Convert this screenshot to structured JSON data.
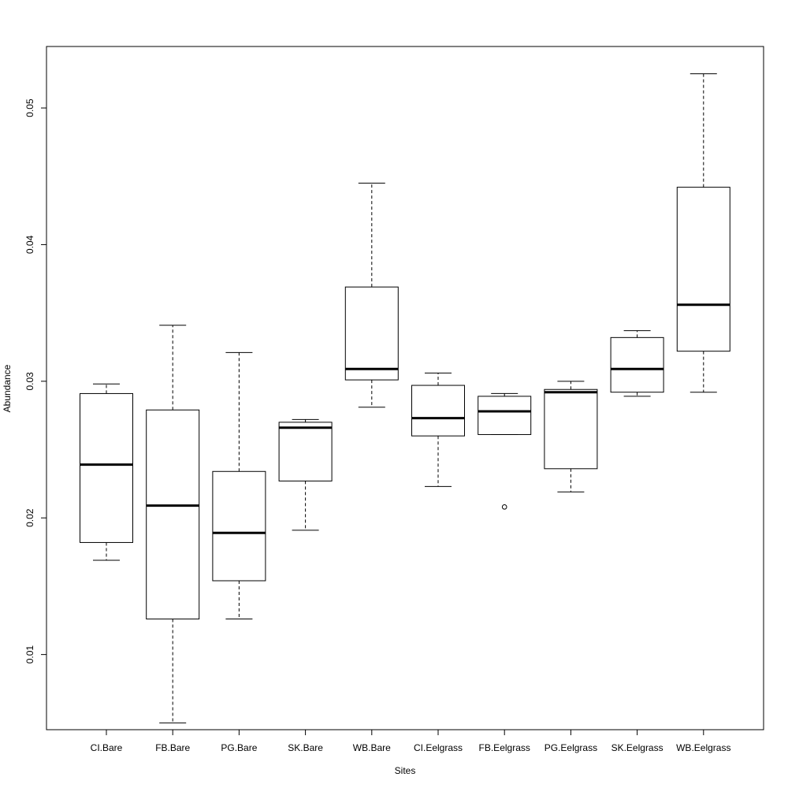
{
  "chart_data": {
    "type": "boxplot",
    "title": "",
    "xlabel": "Sites",
    "ylabel": "Abundance",
    "ylim": [
      0.0045,
      0.0545
    ],
    "yticks": [
      0.01,
      0.02,
      0.03,
      0.04,
      0.05
    ],
    "ytick_labels": [
      "0.01",
      "0.02",
      "0.03",
      "0.04",
      "0.05"
    ],
    "grid": false,
    "categories": [
      "CI.Bare",
      "FB.Bare",
      "PG.Bare",
      "SK.Bare",
      "WB.Bare",
      "CI.Eelgrass",
      "FB.Eelgrass",
      "PG.Eelgrass",
      "SK.Eelgrass",
      "WB.Eelgrass"
    ],
    "boxes": [
      {
        "whisker_low": 0.0169,
        "q1": 0.0182,
        "median": 0.0239,
        "q3": 0.0291,
        "whisker_high": 0.0298,
        "outliers": []
      },
      {
        "whisker_low": 0.005,
        "q1": 0.0126,
        "median": 0.0209,
        "q3": 0.0279,
        "whisker_high": 0.0341,
        "outliers": []
      },
      {
        "whisker_low": 0.0126,
        "q1": 0.0154,
        "median": 0.0189,
        "q3": 0.0234,
        "whisker_high": 0.0321,
        "outliers": []
      },
      {
        "whisker_low": 0.0191,
        "q1": 0.0227,
        "median": 0.0266,
        "q3": 0.027,
        "whisker_high": 0.0272,
        "outliers": []
      },
      {
        "whisker_low": 0.0281,
        "q1": 0.0301,
        "median": 0.0309,
        "q3": 0.0369,
        "whisker_high": 0.0445,
        "outliers": []
      },
      {
        "whisker_low": 0.0223,
        "q1": 0.026,
        "median": 0.0273,
        "q3": 0.0297,
        "whisker_high": 0.0306,
        "outliers": []
      },
      {
        "whisker_low": 0.0261,
        "q1": 0.0261,
        "median": 0.0278,
        "q3": 0.0289,
        "whisker_high": 0.0291,
        "outliers": [
          0.0208
        ]
      },
      {
        "whisker_low": 0.0219,
        "q1": 0.0236,
        "median": 0.0292,
        "q3": 0.0294,
        "whisker_high": 0.03,
        "outliers": []
      },
      {
        "whisker_low": 0.0289,
        "q1": 0.0292,
        "median": 0.0309,
        "q3": 0.0332,
        "whisker_high": 0.0337,
        "outliers": []
      },
      {
        "whisker_low": 0.0292,
        "q1": 0.0322,
        "median": 0.0356,
        "q3": 0.0442,
        "whisker_high": 0.0525,
        "outliers": []
      }
    ]
  }
}
